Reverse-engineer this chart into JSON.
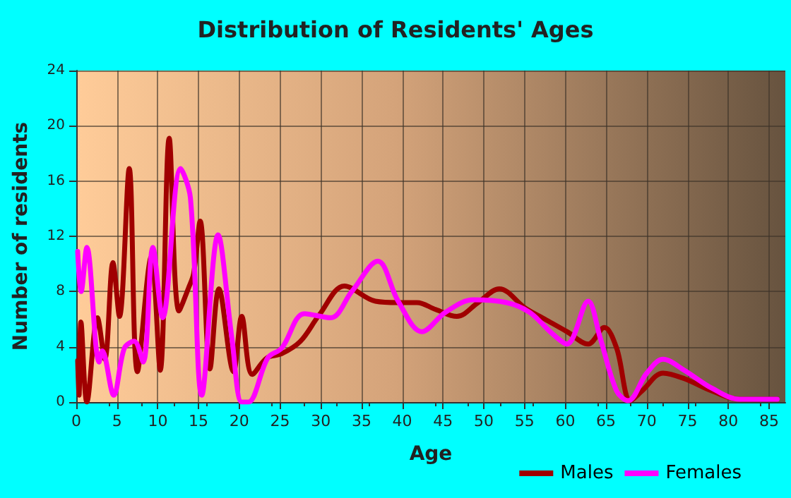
{
  "chart_data": {
    "type": "line",
    "title": "Distribution of Residents' Ages",
    "xlabel": "Age",
    "ylabel": "Number of residents",
    "xlim": [
      0,
      87
    ],
    "xticks": [
      0,
      5,
      10,
      15,
      20,
      25,
      30,
      35,
      40,
      45,
      50,
      55,
      60,
      65,
      70,
      75,
      80,
      85
    ],
    "ylim": [
      0,
      24
    ],
    "yticks": [
      0,
      4,
      8,
      12,
      16,
      20,
      24
    ],
    "grid": true,
    "legend": "bottom right",
    "marker": "none",
    "line_style": "solid",
    "series": [
      {
        "name": "Males",
        "color": "#a00000",
        "x": [
          0.17,
          0.34,
          0.57,
          1.3,
          2.6,
          3.5,
          4.5,
          5.3,
          6.5,
          7.5,
          9.2,
          10.3,
          11.4,
          12.6,
          13.8,
          14.4,
          15.2,
          16.4,
          17.5,
          19.3,
          20.3,
          21.6,
          23.4,
          25.2,
          27.5,
          29.8,
          32.9,
          36.7,
          39.5,
          41.8,
          44.1,
          46.7,
          49.3,
          51.9,
          55.1,
          57.5,
          60.2,
          62.8,
          64.8,
          66.3,
          68,
          69.4,
          72,
          74.6,
          78,
          81.4,
          86
        ],
        "values": [
          3,
          0.5,
          5.8,
          0,
          6.1,
          3.1,
          10.1,
          6.2,
          16.9,
          2.2,
          10.5,
          2.3,
          19.1,
          6.6,
          8.3,
          9.3,
          13.1,
          2.4,
          8.2,
          2.2,
          6.2,
          2,
          3.2,
          3.5,
          4.4,
          6.3,
          8.4,
          7.3,
          7.2,
          7.2,
          6.7,
          6.2,
          7.2,
          8.2,
          6.8,
          6,
          5.1,
          4.2,
          5.4,
          3.9,
          0.1,
          0.8,
          2.1,
          1.7,
          0.8,
          0.2,
          0.2
        ]
      },
      {
        "name": "Females",
        "color": "#ff00ff",
        "x": [
          0.17,
          0.6,
          1.3,
          2.8,
          3.2,
          4.6,
          5.9,
          7.1,
          8.2,
          9.4,
          10.6,
          12.8,
          14,
          15.4,
          17.4,
          19.1,
          20.3,
          21.1,
          23.5,
          25.2,
          28,
          31.2,
          33.8,
          37,
          39.5,
          42.4,
          45.3,
          48.7,
          52.8,
          55.6,
          58.5,
          60.2,
          62.8,
          64.3,
          66.3,
          67.7,
          70,
          72,
          74.6,
          78,
          81.4,
          86
        ],
        "values": [
          10.9,
          8,
          11.2,
          2.9,
          3.7,
          0.5,
          3.9,
          4.4,
          2.9,
          11.2,
          6.1,
          16.9,
          14.8,
          0.5,
          12.1,
          4.6,
          0,
          0,
          3.2,
          3.9,
          6.4,
          6.1,
          8,
          10.2,
          7.3,
          5.1,
          6.5,
          7.4,
          7.2,
          6.5,
          4.9,
          4.2,
          7.3,
          4.6,
          0.8,
          0.1,
          2.1,
          3.1,
          2.3,
          1,
          0.2,
          0.2
        ]
      }
    ]
  }
}
